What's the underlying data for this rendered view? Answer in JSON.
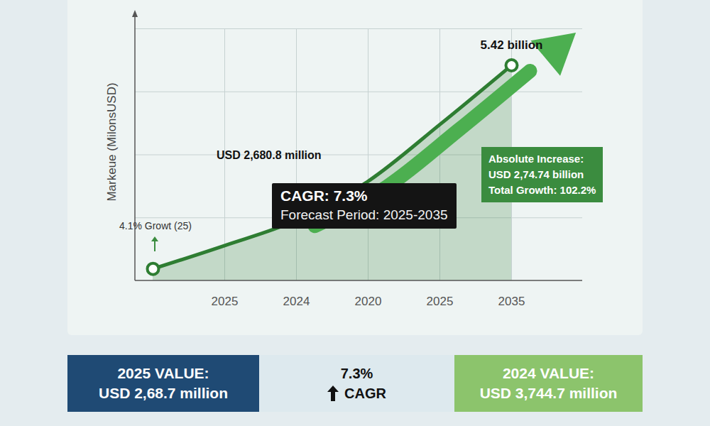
{
  "chart_data": {
    "type": "line",
    "y_label": "Markeue (MilonsUSD)",
    "categories": [
      null,
      "2025",
      "2024",
      "2020",
      "2025",
      "2035"
    ],
    "values": [
      2190,
      2560,
      2960,
      3580,
      4480,
      5420
    ],
    "color": "#2e7d32",
    "ylim": [
      2000,
      6000
    ],
    "yticks": [
      3000,
      4000,
      5000,
      6000
    ],
    "grid": true,
    "tick_labels": "x",
    "annotations": {
      "peak": "5.42 billion",
      "mid": "USD 2,680.8 million",
      "growth": "4.1% Growt (25)",
      "cagr": "CAGR: 7.3%",
      "forecast": "Forecast Period: 2025-2035",
      "increase": [
        "Absolute Increase:",
        "USD 2,74.74 billion",
        "Total Growth: 102.2%"
      ]
    },
    "summary": [
      {
        "label": "2025 VALUE:",
        "value": "USD 2,68.7 million"
      },
      {
        "label": "7.3%",
        "value": "CAGR"
      },
      {
        "label": "2024 VALUE:",
        "value": "USD 3,744.7 million"
      }
    ]
  }
}
